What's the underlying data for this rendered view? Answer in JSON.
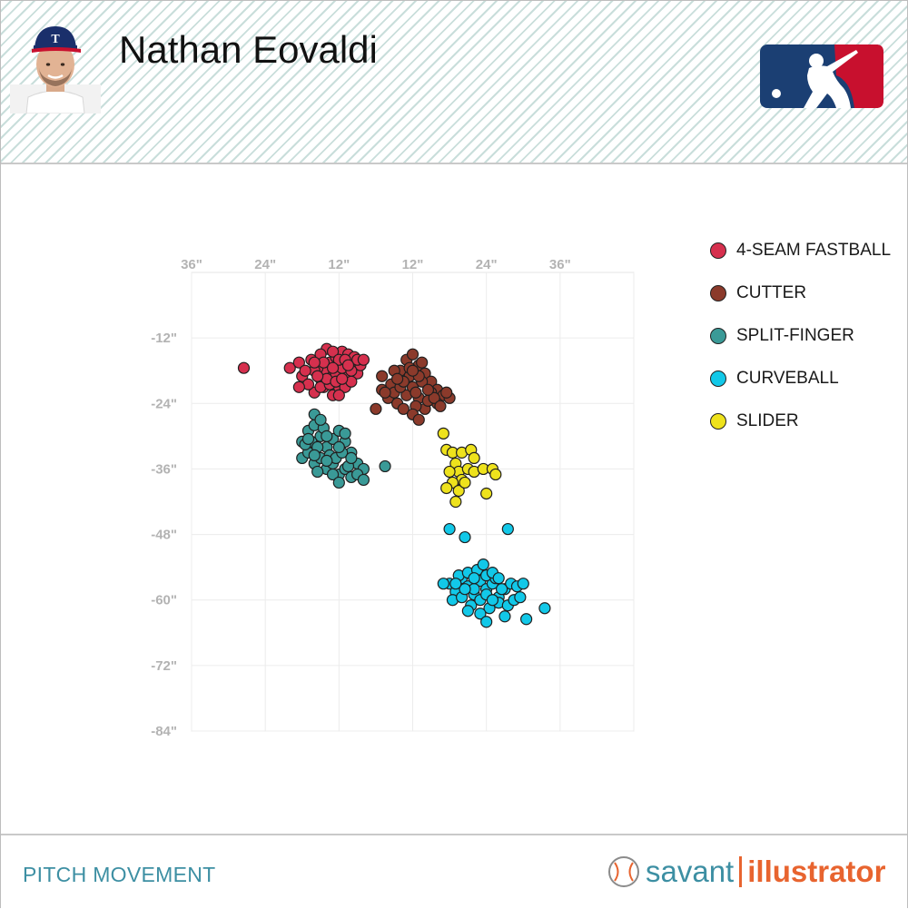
{
  "header": {
    "player_name": "Nathan Eovaldi",
    "headshot_icon": "player-headshot-texas-rangers-cap",
    "logo_icon": "mlb-logo"
  },
  "legend": [
    {
      "label": "4-SEAM FASTBALL",
      "color": "#d6304e"
    },
    {
      "label": "CUTTER",
      "color": "#8b3a2b"
    },
    {
      "label": "SPLIT-FINGER",
      "color": "#3a9a97"
    },
    {
      "label": "CURVEBALL",
      "color": "#12c8e8"
    },
    {
      "label": "SLIDER",
      "color": "#eee21c"
    }
  ],
  "chart_data": {
    "type": "scatter",
    "title": "",
    "xlabel": "",
    "ylabel": "",
    "x_tick_labels": [
      "36\"",
      "24\"",
      "12\"",
      "12\"",
      "24\"",
      "36\""
    ],
    "y_tick_labels": [
      "-12\"",
      "-24\"",
      "-36\"",
      "-48\"",
      "-60\"",
      "-72\"",
      "-84\""
    ],
    "x_range_inches": [
      -36,
      36
    ],
    "y_range_inches": [
      -84,
      0
    ],
    "grid": true,
    "legend_position": "right",
    "series": [
      {
        "name": "4-SEAM FASTBALL",
        "color": "#d6304e",
        "points": [
          [
            -20,
            -17.5
          ],
          [
            -18,
            -19
          ],
          [
            -16.5,
            -16
          ],
          [
            -15,
            -19.5
          ],
          [
            -14,
            -18
          ],
          [
            -13,
            -20
          ],
          [
            -12,
            -17
          ],
          [
            -11,
            -19
          ],
          [
            -10,
            -16.5
          ],
          [
            -9,
            -18.5
          ],
          [
            -8.5,
            -17
          ],
          [
            -16,
            -22
          ],
          [
            -14.5,
            -21
          ],
          [
            -13,
            -22.5
          ],
          [
            -12,
            -21
          ],
          [
            -17,
            -20.5
          ],
          [
            -15.5,
            -17.5
          ],
          [
            -13.5,
            -16.5
          ],
          [
            -12.5,
            -15.5
          ],
          [
            -11.5,
            -14.5
          ],
          [
            -10.5,
            -15
          ],
          [
            -14,
            -14
          ],
          [
            -15,
            -15
          ],
          [
            -13,
            -19
          ],
          [
            -11,
            -21
          ],
          [
            -10,
            -20
          ],
          [
            -9.5,
            -15.5
          ],
          [
            -16,
            -18
          ],
          [
            -18.5,
            -16.5
          ],
          [
            -12.5,
            -18.5
          ],
          [
            -14.5,
            -16.5
          ],
          [
            -13,
            -14.5
          ],
          [
            -11.5,
            -17.5
          ],
          [
            -10,
            -18
          ],
          [
            -9,
            -16
          ],
          [
            -17.5,
            -18
          ],
          [
            -15,
            -21
          ],
          [
            -13.5,
            -20.5
          ],
          [
            -12,
            -16
          ],
          [
            -11,
            -16
          ],
          [
            -8,
            -16
          ],
          [
            -16,
            -16.5
          ],
          [
            -14,
            -19.5
          ],
          [
            -12.5,
            -20
          ],
          [
            -10.5,
            -17
          ],
          [
            -15.5,
            -19
          ],
          [
            -13,
            -17.5
          ],
          [
            -11.5,
            -19.5
          ],
          [
            -12,
            -22.5
          ],
          [
            -27.5,
            -17.5
          ],
          [
            -18.5,
            -21
          ]
        ]
      },
      {
        "name": "CUTTER",
        "color": "#8b3a2b",
        "points": [
          [
            -5,
            -19
          ],
          [
            -3.5,
            -20.5
          ],
          [
            -2,
            -18
          ],
          [
            -1,
            -16
          ],
          [
            0,
            -15
          ],
          [
            1,
            -17
          ],
          [
            2,
            -18.5
          ],
          [
            3,
            -20
          ],
          [
            4,
            -21.5
          ],
          [
            5,
            -22.5
          ],
          [
            6,
            -23
          ],
          [
            -4,
            -23
          ],
          [
            -3,
            -22
          ],
          [
            -2.5,
            -24
          ],
          [
            -1,
            -22.5
          ],
          [
            0,
            -21
          ],
          [
            1,
            -23
          ],
          [
            2,
            -25
          ],
          [
            3,
            -22
          ],
          [
            4,
            -24
          ],
          [
            1.5,
            -20
          ],
          [
            -0.5,
            -19
          ],
          [
            -2,
            -21
          ],
          [
            0.5,
            -24.5
          ],
          [
            2.5,
            -23.5
          ],
          [
            -1.5,
            -25
          ],
          [
            0,
            -26
          ],
          [
            1,
            -27
          ],
          [
            3.5,
            -23
          ],
          [
            -5,
            -21.5
          ],
          [
            -3,
            -18
          ],
          [
            -0.5,
            -17.5
          ],
          [
            1.5,
            -16.5
          ],
          [
            2.5,
            -21.5
          ],
          [
            -1.5,
            -20
          ],
          [
            0.5,
            -22
          ],
          [
            5.5,
            -22
          ],
          [
            4.5,
            -24.5
          ],
          [
            -4.5,
            -22
          ],
          [
            -2.5,
            -19.5
          ],
          [
            1,
            -19
          ],
          [
            0,
            -18
          ],
          [
            -6,
            -25
          ]
        ]
      },
      {
        "name": "SPLIT-FINGER",
        "color": "#3a9a97",
        "points": [
          [
            -18,
            -31
          ],
          [
            -17,
            -29
          ],
          [
            -16,
            -28
          ],
          [
            -15,
            -30
          ],
          [
            -14,
            -32
          ],
          [
            -13,
            -30.5
          ],
          [
            -12,
            -29
          ],
          [
            -11,
            -31
          ],
          [
            -10,
            -33
          ],
          [
            -9,
            -35
          ],
          [
            -8,
            -36
          ],
          [
            -18,
            -34
          ],
          [
            -17,
            -33
          ],
          [
            -16,
            -35
          ],
          [
            -15,
            -34
          ],
          [
            -14,
            -36
          ],
          [
            -13,
            -35
          ],
          [
            -12,
            -37
          ],
          [
            -11,
            -36
          ],
          [
            -10,
            -37.5
          ],
          [
            -9,
            -37
          ],
          [
            -16.5,
            -31
          ],
          [
            -15.5,
            -32
          ],
          [
            -14.5,
            -28.5
          ],
          [
            -13.5,
            -33.5
          ],
          [
            -12.5,
            -34
          ],
          [
            -11.5,
            -33
          ],
          [
            -10.5,
            -35.5
          ],
          [
            -17.5,
            -31.5
          ],
          [
            -16,
            -33.5
          ],
          [
            -14,
            -30
          ],
          [
            -12,
            -32
          ],
          [
            -11,
            -29.5
          ],
          [
            -16,
            -26
          ],
          [
            -15,
            -27
          ],
          [
            -17,
            -30.5
          ],
          [
            -13,
            -37
          ],
          [
            -12,
            -38.5
          ],
          [
            -8,
            -38
          ],
          [
            -10,
            -34
          ],
          [
            -14,
            -34.5
          ],
          [
            -15.5,
            -36.5
          ],
          [
            -4.5,
            -35.5
          ]
        ]
      },
      {
        "name": "CURVEBALL",
        "color": "#12c8e8",
        "points": [
          [
            6,
            -57
          ],
          [
            7,
            -58.5
          ],
          [
            8,
            -56
          ],
          [
            9,
            -57.5
          ],
          [
            10,
            -59
          ],
          [
            11,
            -56.5
          ],
          [
            12,
            -58
          ],
          [
            13,
            -57
          ],
          [
            14,
            -59.5
          ],
          [
            15,
            -58
          ],
          [
            16,
            -57
          ],
          [
            6.5,
            -60
          ],
          [
            8,
            -59.5
          ],
          [
            9.5,
            -61
          ],
          [
            11,
            -60
          ],
          [
            12.5,
            -61.5
          ],
          [
            14,
            -60.5
          ],
          [
            15.5,
            -61
          ],
          [
            7.5,
            -55.5
          ],
          [
            9,
            -55
          ],
          [
            10.5,
            -54.5
          ],
          [
            12,
            -55.5
          ],
          [
            13.5,
            -56
          ],
          [
            11.5,
            -53.5
          ],
          [
            10,
            -58
          ],
          [
            8.5,
            -58
          ],
          [
            12,
            -59
          ],
          [
            13,
            -60
          ],
          [
            14.5,
            -58
          ],
          [
            16.5,
            -60
          ],
          [
            17.5,
            -59.5
          ],
          [
            17,
            -57.5
          ],
          [
            18,
            -57
          ],
          [
            5,
            -57
          ],
          [
            9,
            -62
          ],
          [
            11,
            -62.5
          ],
          [
            12,
            -64
          ],
          [
            15,
            -63
          ],
          [
            18.5,
            -63.5
          ],
          [
            21.5,
            -61.5
          ],
          [
            10,
            -56
          ],
          [
            13,
            -55
          ],
          [
            7,
            -57
          ],
          [
            14,
            -56
          ],
          [
            6,
            -47
          ],
          [
            8.5,
            -48.5
          ],
          [
            15.5,
            -47
          ]
        ]
      },
      {
        "name": "SLIDER",
        "color": "#eee21c",
        "points": [
          [
            5,
            -29.5
          ],
          [
            5.5,
            -32.5
          ],
          [
            6.5,
            -33
          ],
          [
            7,
            -35
          ],
          [
            7.5,
            -36.5
          ],
          [
            8,
            -38
          ],
          [
            8,
            -33
          ],
          [
            9,
            -36
          ],
          [
            9.5,
            -32.5
          ],
          [
            10,
            -36.5
          ],
          [
            11.5,
            -36
          ],
          [
            12,
            -40.5
          ],
          [
            13,
            -36
          ],
          [
            13.5,
            -37
          ],
          [
            6,
            -36.5
          ],
          [
            6.5,
            -38.5
          ],
          [
            7,
            -42
          ],
          [
            5.5,
            -39.5
          ],
          [
            7.5,
            -40
          ],
          [
            8.5,
            -38.5
          ],
          [
            10,
            -34
          ]
        ]
      }
    ]
  },
  "footer": {
    "section_title": "PITCH MOVEMENT",
    "brand_word1": "savant",
    "brand_word2": "illustrator",
    "brand_icon": "baseball-icon"
  }
}
